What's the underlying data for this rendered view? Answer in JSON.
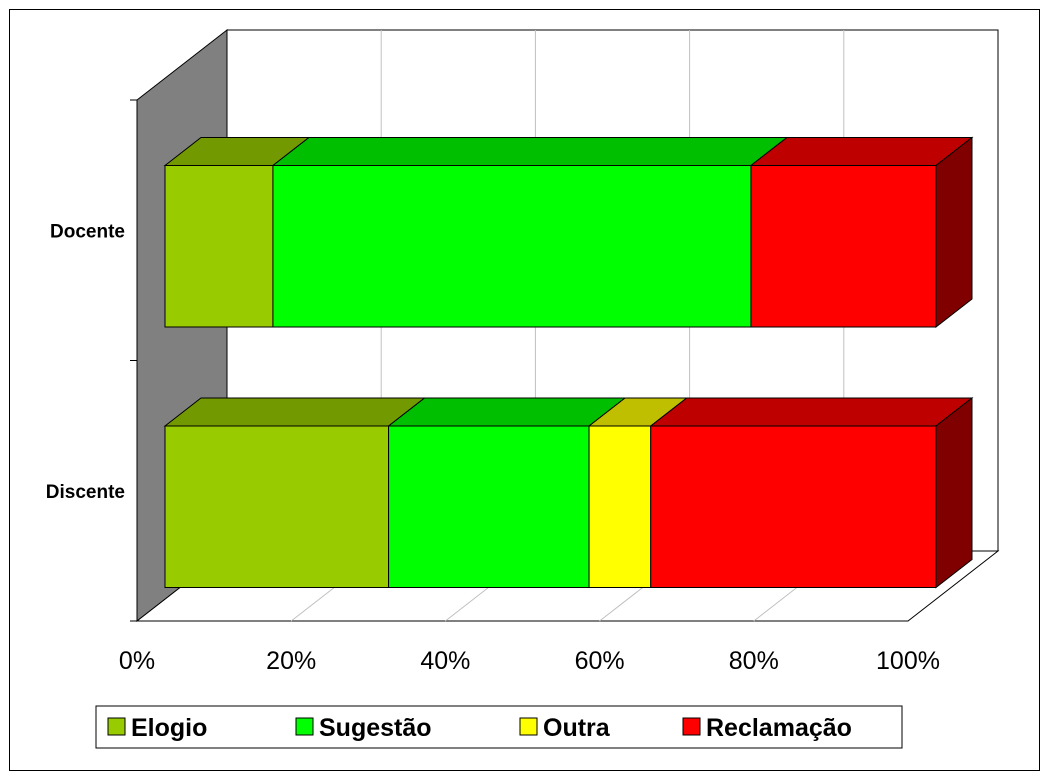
{
  "chart_data": {
    "type": "bar",
    "orientation": "horizontal",
    "stacked": "percent",
    "style": "3d",
    "categories": [
      "Docente",
      "Discente"
    ],
    "series": [
      {
        "name": "Elogio",
        "values": [
          14,
          29
        ],
        "color": "#99cc00"
      },
      {
        "name": "Sugestão",
        "values": [
          62,
          26
        ],
        "color": "#00ff00"
      },
      {
        "name": "Outra",
        "values": [
          0,
          8
        ],
        "color": "#ffff00"
      },
      {
        "name": "Reclamação",
        "values": [
          24,
          37
        ],
        "color": "#ff0000"
      }
    ],
    "x_ticks": [
      "0%",
      "20%",
      "40%",
      "60%",
      "80%",
      "100%"
    ],
    "xlim": [
      0,
      100
    ],
    "grid": true,
    "legend_position": "bottom",
    "title": "",
    "xlabel": "",
    "ylabel": ""
  }
}
